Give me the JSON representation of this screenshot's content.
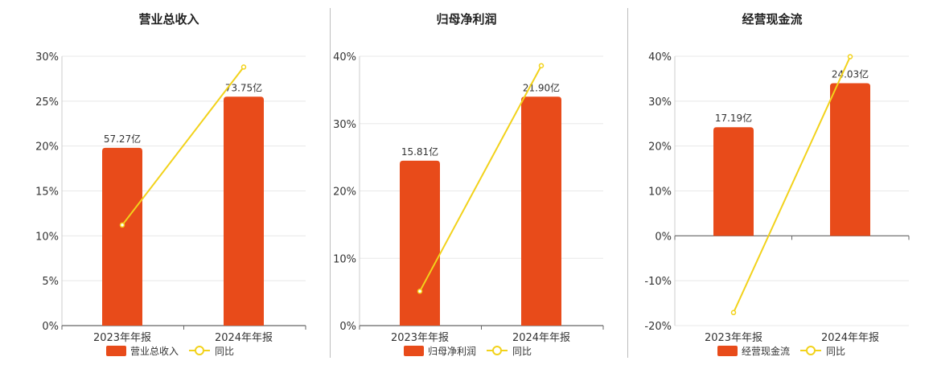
{
  "colors": {
    "bar": "#e84b1a",
    "line": "#f2d21b",
    "grid": "#e8e8e8",
    "axis": "#666666"
  },
  "legend": {
    "line_label": "同比"
  },
  "chart_data": [
    {
      "type": "bar",
      "title": "营业总收入",
      "categories": [
        "2023年年报",
        "2024年年报"
      ],
      "series": [
        {
          "name": "营业总收入",
          "type": "bar",
          "values": [
            19.8,
            25.5
          ],
          "labels": [
            "57.27亿",
            "73.75亿"
          ]
        },
        {
          "name": "同比",
          "type": "line",
          "values": [
            11.2,
            28.8
          ]
        }
      ],
      "ylim": [
        0,
        30
      ],
      "yticks": [
        0,
        5,
        10,
        15,
        20,
        25,
        30
      ],
      "ytick_labels": [
        "0%",
        "5%",
        "10%",
        "15%",
        "20%",
        "25%",
        "30%"
      ],
      "legend_position": "bottom"
    },
    {
      "type": "bar",
      "title": "归母净利润",
      "categories": [
        "2023年年报",
        "2024年年报"
      ],
      "series": [
        {
          "name": "归母净利润",
          "type": "bar",
          "values": [
            24.5,
            34.0
          ],
          "labels": [
            "15.81亿",
            "21.90亿"
          ]
        },
        {
          "name": "同比",
          "type": "line",
          "values": [
            5.1,
            38.6
          ]
        }
      ],
      "ylim": [
        0,
        40
      ],
      "yticks": [
        0,
        10,
        20,
        30,
        40
      ],
      "ytick_labels": [
        "0%",
        "10%",
        "20%",
        "30%",
        "40%"
      ],
      "legend_position": "bottom"
    },
    {
      "type": "bar",
      "title": "经营现金流",
      "categories": [
        "2023年年报",
        "2024年年报"
      ],
      "series": [
        {
          "name": "经营现金流",
          "type": "bar",
          "values": [
            24.2,
            34.0
          ],
          "labels": [
            "17.19亿",
            "24.03亿"
          ]
        },
        {
          "name": "同比",
          "type": "line",
          "values": [
            -17.1,
            39.9
          ]
        }
      ],
      "ylim": [
        -20,
        40
      ],
      "yticks": [
        -20,
        -10,
        0,
        10,
        20,
        30,
        40
      ],
      "ytick_labels": [
        "-20%",
        "-10%",
        "0%",
        "10%",
        "20%",
        "30%",
        "40%"
      ],
      "legend_position": "bottom"
    }
  ]
}
